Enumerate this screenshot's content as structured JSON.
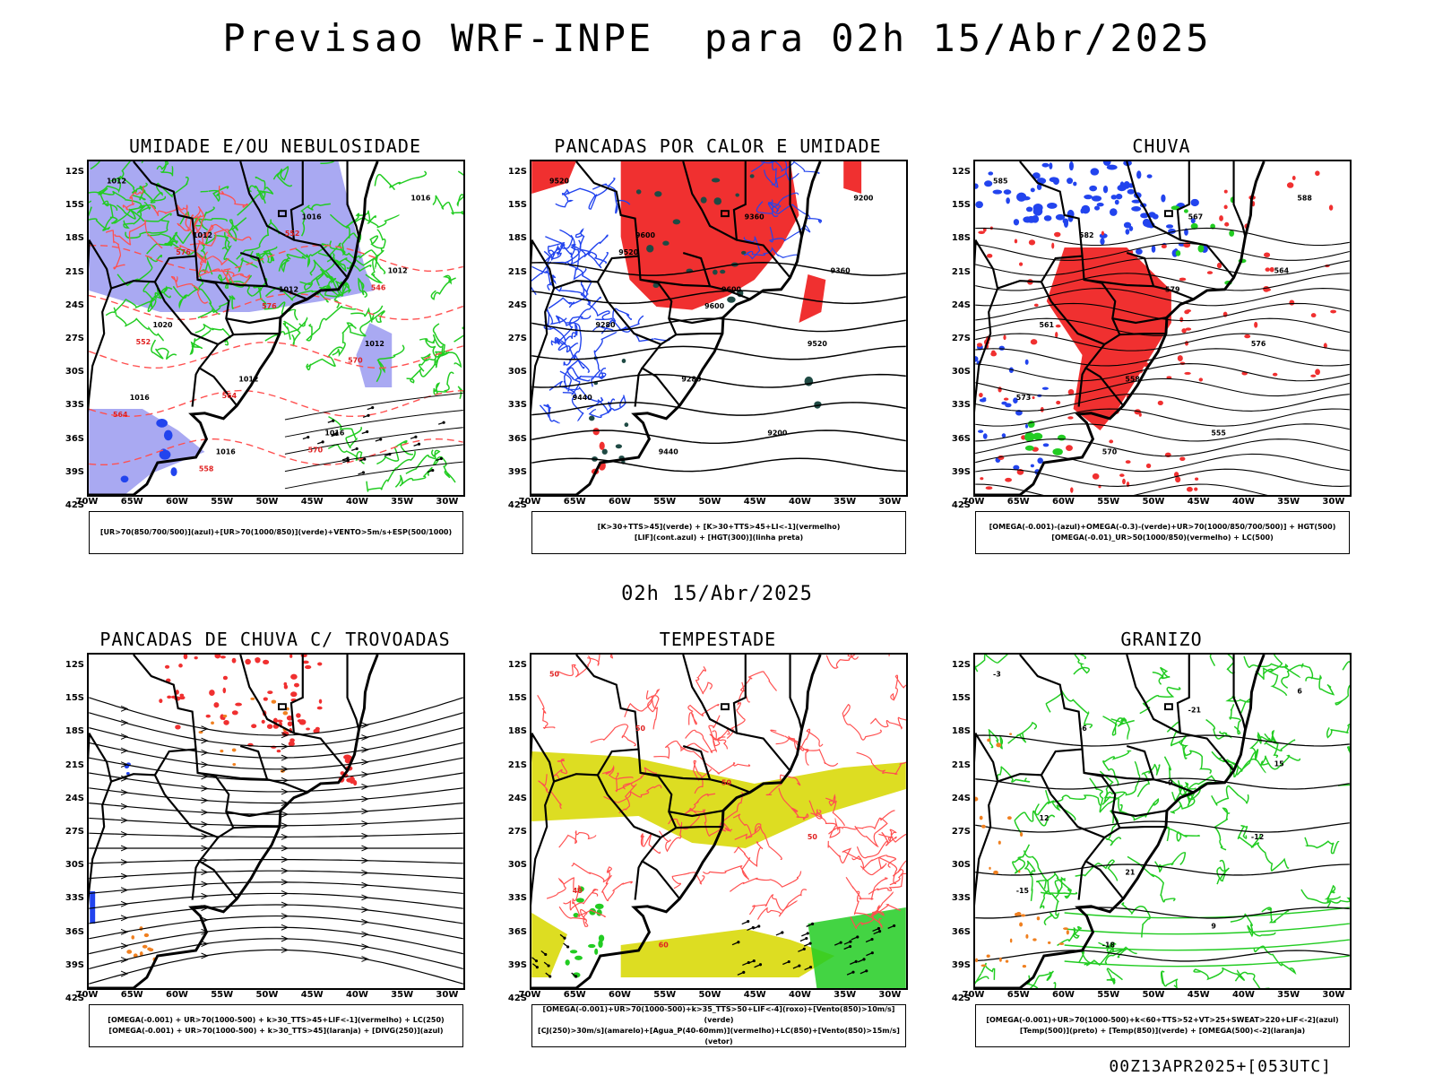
{
  "title": "Previsao WRF-INPE  para 02h 15/Abr/2025",
  "mid_date": "02h 15/Abr/2025",
  "footer": "00Z13APR2025+[053UTC]",
  "lat_labels": [
    "12S",
    "15S",
    "18S",
    "21S",
    "24S",
    "27S",
    "30S",
    "33S",
    "36S",
    "39S",
    "42S"
  ],
  "lon_labels": [
    "70W",
    "65W",
    "60W",
    "55W",
    "50W",
    "45W",
    "40W",
    "35W",
    "30W"
  ],
  "panels": [
    {
      "title": "UMIDADE E/OU NEBULOSIDADE",
      "legend": [
        "[UR>70(850/700/500)](azul)+[UR>70(1000/850)](verde)+VENTO>5m/s+ESP(500/1000)"
      ],
      "labels": [
        "1012",
        "1012",
        "1012",
        "1012",
        "1016",
        "1016",
        "1016",
        "1012",
        "1020",
        "1012",
        "1016",
        "1016",
        "576",
        "576",
        "570",
        "564",
        "558",
        "552",
        "546",
        "552",
        "564",
        "570"
      ]
    },
    {
      "title": "PANCADAS POR CALOR E UMIDADE",
      "legend": [
        "[K>30+TTS>45](verde) + [K>30+TTS>45+LI<-1](vermelho)",
        "[LIF](cont.azul) + [HGT(300)](linha preta)"
      ],
      "labels": [
        "9520",
        "9600",
        "9600",
        "9520",
        "9440",
        "9440",
        "9360",
        "9360",
        "9280",
        "9280",
        "9200",
        "9200",
        "9520",
        "9600"
      ]
    },
    {
      "title": "CHUVA",
      "legend": [
        "[OMEGA(-0.001)-(azul)+OMEGA(-0.3)-(verde)+UR>70(1000/850/700/500)] + HGT(500)",
        "[OMEGA(-0.01)_UR>50(1000/850)(vermelho) + LC(500)"
      ],
      "labels": [
        "585",
        "582",
        "579",
        "576",
        "573",
        "570",
        "567",
        "564",
        "561",
        "558",
        "555",
        "588"
      ]
    },
    {
      "title": "PANCADAS DE CHUVA C/ TROVOADAS",
      "legend": [
        "[OMEGA(-0.001) + UR>70(1000-500) + k>30_TTS>45+LIF<-1](vermelho) + LC(250)",
        "[OMEGA(-0.001) + UR>70(1000-500) + k>30_TTS>45](laranja) + [DIVG(250)](azul)"
      ],
      "labels": []
    },
    {
      "title": "TEMPESTADE",
      "legend": [
        "[OMEGA(-0.001)+UR>70(1000-500)+k>35_TTS>50+LIF<-4](roxo)+[Vento(850)>10m/s](verde)",
        "[CJ(250)>30m/s](amarelo)+[Agua_P(40-60mm)](vermelho)+LC(850)+[Vento(850)>15m/s](vetor)"
      ],
      "labels": [
        "50",
        "50",
        "50",
        "50",
        "40",
        "60"
      ]
    },
    {
      "title": "GRANIZO",
      "legend": [
        "[OMEGA(-0.001)+UR>70(1000-500)+k<60+TTS>52+VT>25+SWEAT>220+LIF<-2](azul)",
        "[Temp(500)](preto) + [Temp(850)](verde) + [OMEGA(500)<-2](laranja)"
      ],
      "labels": [
        "-3",
        "-6",
        "-9",
        "-12",
        "-15",
        "-18",
        "-21",
        "15",
        "12",
        "21",
        "9",
        "6"
      ]
    }
  ],
  "colors": {
    "blue": "#2244ee",
    "lilac": "#a9a9f2",
    "green": "#22cc22",
    "red": "#f03030",
    "darkgreen": "#1f4a44",
    "orange": "#f08020",
    "yellow": "#dddd22",
    "salmon": "#ff5050"
  }
}
